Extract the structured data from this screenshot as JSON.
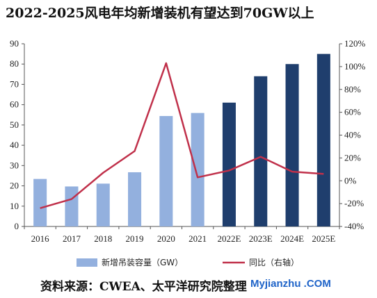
{
  "title": "2022-2025风电年均新增装机有望达到70GW以上",
  "source": "资料来源：CWEA、太平洋研究院整理",
  "watermark": "Myjianzhu .COM",
  "chart_data": {
    "type": "bar",
    "categories": [
      "2016",
      "2017",
      "2018",
      "2019",
      "2020",
      "2021",
      "2022E",
      "2023E",
      "2024E",
      "2025E"
    ],
    "series": [
      {
        "name": "新增吊装容量（GW）",
        "type": "bar",
        "axis": "left",
        "values": [
          23.4,
          19.7,
          21.1,
          26.7,
          54.4,
          55.9,
          61,
          74,
          80,
          85
        ],
        "colors": [
          "#93b0de",
          "#93b0de",
          "#93b0de",
          "#93b0de",
          "#93b0de",
          "#93b0de",
          "#1f3e6d",
          "#1f3e6d",
          "#1f3e6d",
          "#1f3e6d"
        ]
      },
      {
        "name": "同比（右轴）",
        "type": "line",
        "axis": "right",
        "unit": "%",
        "values": [
          -24,
          -16,
          7,
          26,
          103,
          3,
          9,
          21,
          8,
          6
        ],
        "color": "#c0304a"
      }
    ],
    "y_left": {
      "min": 0,
      "max": 90,
      "ticks": [
        0,
        10,
        20,
        30,
        40,
        50,
        60,
        70,
        80,
        90
      ]
    },
    "y_right": {
      "min": -40,
      "max": 120,
      "ticks": [
        "-40%",
        "-20%",
        "0%",
        "20%",
        "40%",
        "60%",
        "80%",
        "100%",
        "120%"
      ]
    },
    "legend_position": "bottom",
    "grid": false
  }
}
